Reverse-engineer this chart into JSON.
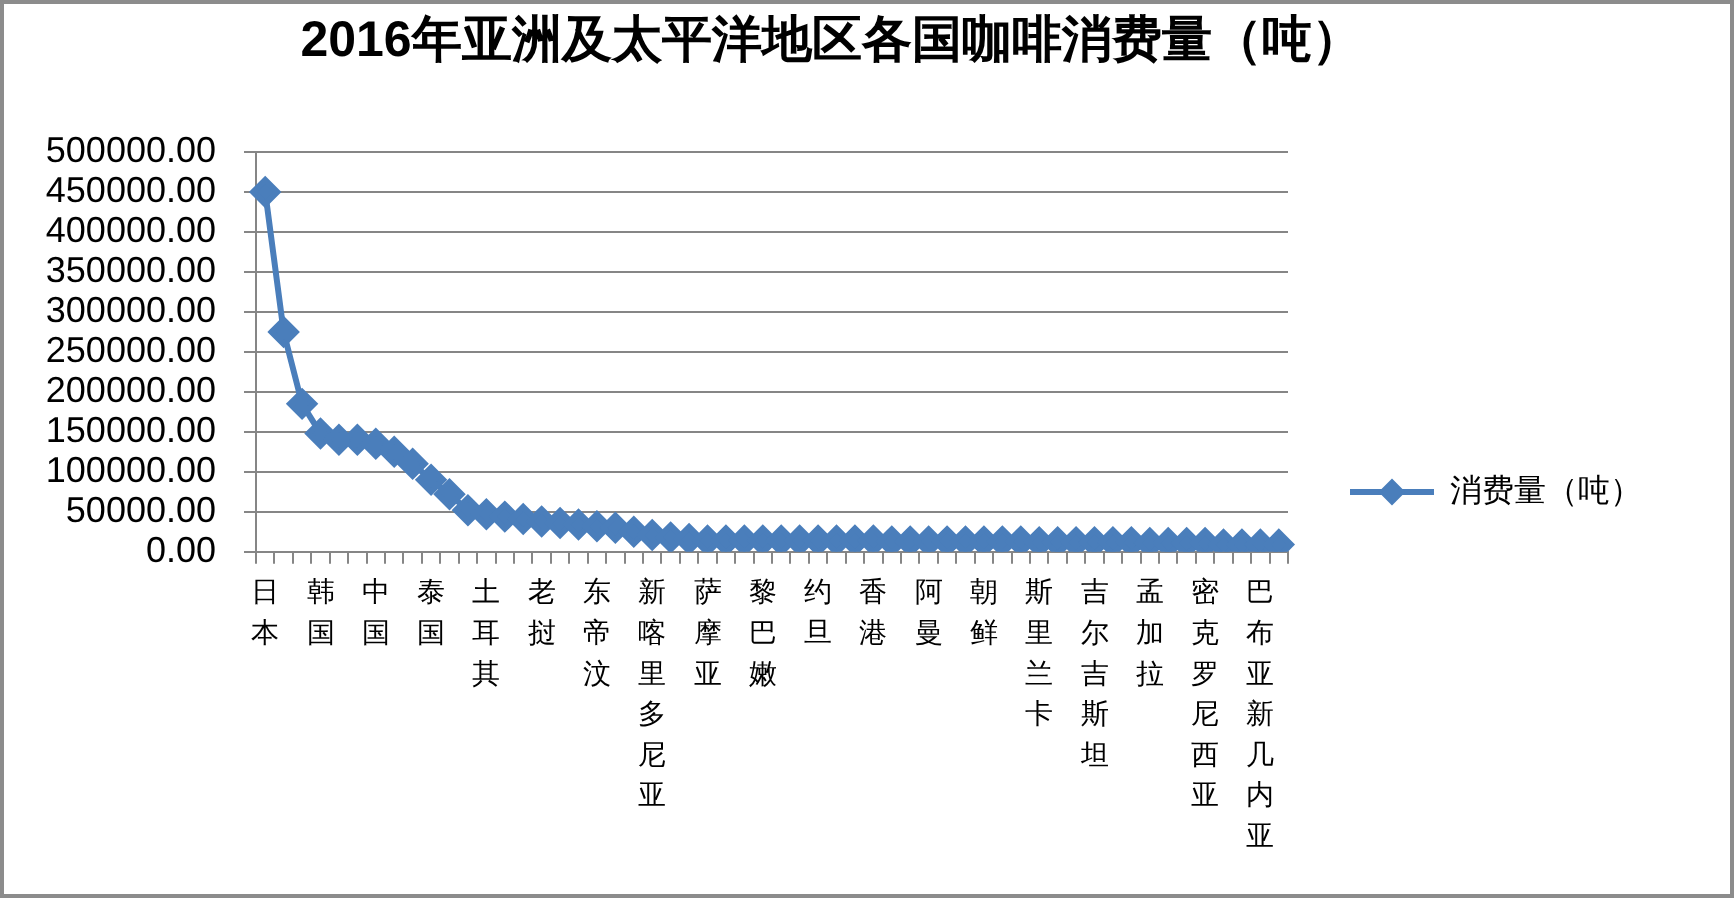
{
  "chart_data": {
    "type": "line",
    "title": "2016年亚洲及太平洋地区各国咖啡消费量（吨）",
    "categories": [
      "日本",
      null,
      null,
      "韩国",
      null,
      null,
      "中国",
      null,
      null,
      "泰国",
      null,
      null,
      "土耳其",
      null,
      null,
      "老挝",
      null,
      null,
      "东帝汶",
      null,
      null,
      "新喀里多尼亚",
      null,
      null,
      "萨摩亚",
      null,
      null,
      "黎巴嫩",
      null,
      null,
      "约旦",
      null,
      null,
      "香港",
      null,
      null,
      "阿曼",
      null,
      null,
      "朝鲜",
      null,
      null,
      "斯里兰卡",
      null,
      null,
      "吉尔吉斯坦",
      null,
      null,
      "孟加拉",
      null,
      null,
      "密克罗尼西亚",
      null,
      null,
      "巴布亚新几内亚",
      null
    ],
    "series": [
      {
        "name": "消费量（吨）",
        "color": "#4a7ebb",
        "values": [
          450000,
          275000,
          185000,
          148000,
          140000,
          140000,
          135000,
          125000,
          110000,
          90000,
          72000,
          52000,
          47000,
          44000,
          41000,
          38000,
          36000,
          34000,
          32000,
          30000,
          25000,
          21000,
          18000,
          16000,
          14000,
          14000,
          14000,
          14000,
          14000,
          14000,
          14000,
          14000,
          14000,
          14000,
          13000,
          13000,
          13000,
          13000,
          13000,
          13000,
          13000,
          13000,
          12000,
          12000,
          12000,
          12000,
          12000,
          12000,
          11000,
          11000,
          11000,
          11000,
          9000,
          9000,
          9000,
          9000
        ]
      }
    ],
    "ylim": [
      0,
      500000
    ],
    "yticks": [
      {
        "value": 0,
        "label": "0.00"
      },
      {
        "value": 50000,
        "label": "50000.00"
      },
      {
        "value": 100000,
        "label": "100000.00"
      },
      {
        "value": 150000,
        "label": "150000.00"
      },
      {
        "value": 200000,
        "label": "200000.00"
      },
      {
        "value": 250000,
        "label": "250000.00"
      },
      {
        "value": 300000,
        "label": "300000.00"
      },
      {
        "value": 350000,
        "label": "350000.00"
      },
      {
        "value": 400000,
        "label": "400000.00"
      },
      {
        "value": 450000,
        "label": "450000.00"
      },
      {
        "value": 500000,
        "label": "500000.00"
      }
    ],
    "grid": "y",
    "legend": "right",
    "marker": "diamond"
  }
}
